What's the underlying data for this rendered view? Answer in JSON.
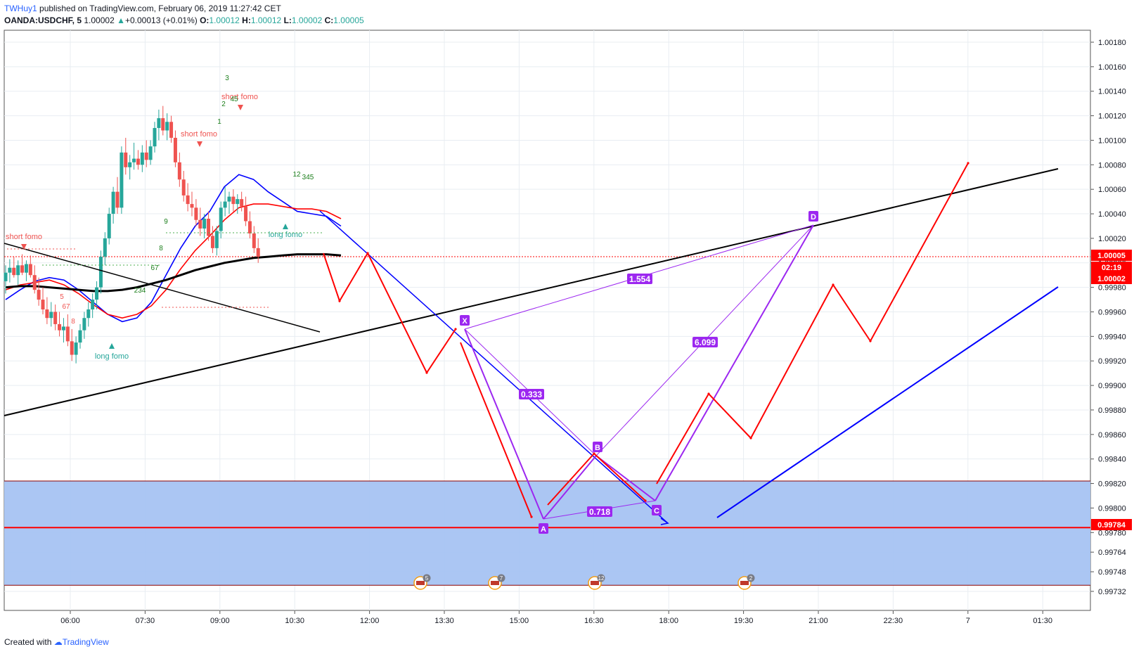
{
  "header": {
    "author": "TWHuy1",
    "published": "published on TradingView.com, February 06, 2019 11:27:42 CET",
    "symbol": "OANDA:USDCHF, 5",
    "last": "1.00002",
    "change": "+0.00013 (+0.01%)",
    "o_label": "O:",
    "o": "1.00012",
    "h_label": "H:",
    "h": "1.00012",
    "l_label": "L:",
    "l": "1.00002",
    "c_label": "C:",
    "c": "1.00005"
  },
  "footer": {
    "created": "Created with",
    "brand": "TradingView"
  },
  "colors": {
    "bull": "#26a69a",
    "bear": "#ef5350",
    "ema_fast": "#0000ff",
    "ema_slow": "#ff0000",
    "ma_long": "#000000",
    "pattern": "#9c27f0",
    "zone": "#a7c3f2",
    "projection": "#ff0000"
  },
  "chart_data": {
    "type": "candlestick",
    "symbol": "OANDA:USDCHF",
    "timeframe": "5",
    "x_ticks": [
      "06:00",
      "07:30",
      "09:00",
      "10:30",
      "12:00",
      "13:30",
      "15:00",
      "16:30",
      "18:00",
      "19:30",
      "21:00",
      "22:30",
      "7",
      "01:30"
    ],
    "y_ticks": [
      "1.00180",
      "1.00160",
      "1.00140",
      "1.00120",
      "1.00100",
      "1.00080",
      "1.00060",
      "1.00040",
      "1.00020",
      "1.00000",
      "0.99980",
      "0.99960",
      "0.99940",
      "0.99920",
      "0.99900",
      "0.99880",
      "0.99860",
      "0.99840",
      "0.99820",
      "0.99800",
      "0.99780",
      "0.99764",
      "0.99748",
      "0.99732"
    ],
    "ylim": [
      0.99725,
      1.0019
    ],
    "price_badges": [
      {
        "label": "1.00005",
        "value": 1.00005,
        "color": "#ff0000"
      },
      {
        "label": "02:19",
        "value": 0.99993,
        "color": "#ff0000"
      },
      {
        "label": "1.00002",
        "value": 0.99982,
        "color": "#ff0000"
      },
      {
        "label": "0.99784",
        "value": 0.99784,
        "color": "#ff0000"
      }
    ],
    "support_zone": {
      "top": 0.99822,
      "bottom": 0.99737,
      "line": 0.99784
    },
    "current_price_line": 1.00005,
    "candles": [
      {
        "t": "05:20",
        "o": 0.99985,
        "h": 0.99998,
        "l": 0.99975,
        "c": 0.99992
      },
      {
        "t": "05:25",
        "o": 0.99992,
        "h": 1.00003,
        "l": 0.99984,
        "c": 0.99996
      },
      {
        "t": "05:30",
        "o": 0.99996,
        "h": 1.00005,
        "l": 0.99988,
        "c": 0.9999
      },
      {
        "t": "05:35",
        "o": 0.9999,
        "h": 1.00002,
        "l": 0.99982,
        "c": 0.99998
      },
      {
        "t": "05:40",
        "o": 0.99998,
        "h": 1.00007,
        "l": 0.9999,
        "c": 0.99992
      },
      {
        "t": "05:45",
        "o": 0.99992,
        "h": 1.00002,
        "l": 0.99985,
        "c": 0.99999
      },
      {
        "t": "05:50",
        "o": 0.99999,
        "h": 1.00006,
        "l": 0.99988,
        "c": 0.9999
      },
      {
        "t": "05:55",
        "o": 0.9999,
        "h": 0.99998,
        "l": 0.99975,
        "c": 0.99978
      },
      {
        "t": "06:00",
        "o": 0.99978,
        "h": 0.99988,
        "l": 0.99965,
        "c": 0.9997
      },
      {
        "t": "06:05",
        "o": 0.9997,
        "h": 0.9998,
        "l": 0.99958,
        "c": 0.99962
      },
      {
        "t": "06:10",
        "o": 0.99962,
        "h": 0.99972,
        "l": 0.9995,
        "c": 0.99955
      },
      {
        "t": "06:15",
        "o": 0.99955,
        "h": 0.99968,
        "l": 0.99948,
        "c": 0.9996
      },
      {
        "t": "06:20",
        "o": 0.9996,
        "h": 0.99966,
        "l": 0.99945,
        "c": 0.9995
      },
      {
        "t": "06:25",
        "o": 0.9995,
        "h": 0.9996,
        "l": 0.9994,
        "c": 0.99945
      },
      {
        "t": "06:30",
        "o": 0.99945,
        "h": 0.99955,
        "l": 0.99935,
        "c": 0.99948
      },
      {
        "t": "06:35",
        "o": 0.99948,
        "h": 0.99958,
        "l": 0.99932,
        "c": 0.99936
      },
      {
        "t": "06:40",
        "o": 0.99936,
        "h": 0.99946,
        "l": 0.9992,
        "c": 0.99925
      },
      {
        "t": "06:45",
        "o": 0.99925,
        "h": 0.9994,
        "l": 0.99918,
        "c": 0.99935
      },
      {
        "t": "06:50",
        "o": 0.99935,
        "h": 0.9995,
        "l": 0.9993,
        "c": 0.99945
      },
      {
        "t": "06:55",
        "o": 0.99945,
        "h": 0.9996,
        "l": 0.99938,
        "c": 0.99955
      },
      {
        "t": "07:00",
        "o": 0.99955,
        "h": 0.99968,
        "l": 0.99948,
        "c": 0.99962
      },
      {
        "t": "07:05",
        "o": 0.99962,
        "h": 0.99975,
        "l": 0.99955,
        "c": 0.9997
      },
      {
        "t": "07:10",
        "o": 0.9997,
        "h": 0.99985,
        "l": 0.99962,
        "c": 0.9998
      },
      {
        "t": "07:15",
        "o": 0.9998,
        "h": 1.0001,
        "l": 0.99975,
        "c": 1.00005
      },
      {
        "t": "07:20",
        "o": 1.00005,
        "h": 1.00025,
        "l": 0.99998,
        "c": 1.0002
      },
      {
        "t": "07:25",
        "o": 1.0002,
        "h": 1.00045,
        "l": 1.00015,
        "c": 1.0004
      },
      {
        "t": "07:30",
        "o": 1.0004,
        "h": 1.00062,
        "l": 1.00032,
        "c": 1.00058
      },
      {
        "t": "07:35",
        "o": 1.00058,
        "h": 1.0007,
        "l": 1.0004,
        "c": 1.00045
      },
      {
        "t": "07:40",
        "o": 1.00045,
        "h": 1.00095,
        "l": 1.0004,
        "c": 1.0009
      },
      {
        "t": "07:45",
        "o": 1.0009,
        "h": 1.00102,
        "l": 1.00072,
        "c": 1.00078
      },
      {
        "t": "07:50",
        "o": 1.00078,
        "h": 1.00088,
        "l": 1.00068,
        "c": 1.00082
      },
      {
        "t": "07:55",
        "o": 1.00082,
        "h": 1.00098,
        "l": 1.00076,
        "c": 1.00085
      },
      {
        "t": "08:00",
        "o": 1.00085,
        "h": 1.00092,
        "l": 1.00076,
        "c": 1.0008
      },
      {
        "t": "08:05",
        "o": 1.0008,
        "h": 1.00096,
        "l": 1.00074,
        "c": 1.0009
      },
      {
        "t": "08:10",
        "o": 1.0009,
        "h": 1.001,
        "l": 1.00078,
        "c": 1.00084
      },
      {
        "t": "08:15",
        "o": 1.00084,
        "h": 1.001,
        "l": 1.0008,
        "c": 1.00095
      },
      {
        "t": "08:20",
        "o": 1.00095,
        "h": 1.00115,
        "l": 1.0009,
        "c": 1.0011
      },
      {
        "t": "08:25",
        "o": 1.0011,
        "h": 1.00125,
        "l": 1.001,
        "c": 1.00118
      },
      {
        "t": "08:30",
        "o": 1.00118,
        "h": 1.00128,
        "l": 1.00104,
        "c": 1.00108
      },
      {
        "t": "08:35",
        "o": 1.00108,
        "h": 1.00122,
        "l": 1.001,
        "c": 1.00115
      },
      {
        "t": "08:40",
        "o": 1.00115,
        "h": 1.0012,
        "l": 1.00098,
        "c": 1.00102
      },
      {
        "t": "08:45",
        "o": 1.00102,
        "h": 1.00108,
        "l": 1.00078,
        "c": 1.00082
      },
      {
        "t": "08:50",
        "o": 1.00082,
        "h": 1.0009,
        "l": 1.00062,
        "c": 1.00068
      },
      {
        "t": "08:55",
        "o": 1.00068,
        "h": 1.00075,
        "l": 1.0005,
        "c": 1.00055
      },
      {
        "t": "09:00",
        "o": 1.00055,
        "h": 1.00065,
        "l": 1.00042,
        "c": 1.00048
      },
      {
        "t": "09:05",
        "o": 1.00048,
        "h": 1.00058,
        "l": 1.00038,
        "c": 1.00045
      },
      {
        "t": "09:10",
        "o": 1.00045,
        "h": 1.00052,
        "l": 1.0003,
        "c": 1.00035
      },
      {
        "t": "09:15",
        "o": 1.00035,
        "h": 1.00045,
        "l": 1.00022,
        "c": 1.00028
      },
      {
        "t": "09:20",
        "o": 1.00028,
        "h": 1.0004,
        "l": 1.0002,
        "c": 1.00036
      },
      {
        "t": "09:25",
        "o": 1.00036,
        "h": 1.00042,
        "l": 1.00018,
        "c": 1.00022
      },
      {
        "t": "09:30",
        "o": 1.00022,
        "h": 1.0003,
        "l": 1.00008,
        "c": 1.00012
      },
      {
        "t": "09:35",
        "o": 1.00012,
        "h": 1.0003,
        "l": 1.00006,
        "c": 1.00026
      },
      {
        "t": "09:40",
        "o": 1.00026,
        "h": 1.0005,
        "l": 1.0002,
        "c": 1.00045
      },
      {
        "t": "09:45",
        "o": 1.00045,
        "h": 1.00062,
        "l": 1.00038,
        "c": 1.0005
      },
      {
        "t": "09:50",
        "o": 1.0005,
        "h": 1.00058,
        "l": 1.0004,
        "c": 1.00054
      },
      {
        "t": "09:55",
        "o": 1.00054,
        "h": 1.0006,
        "l": 1.00042,
        "c": 1.00048
      },
      {
        "t": "10:00",
        "o": 1.00048,
        "h": 1.00056,
        "l": 1.0004,
        "c": 1.00052
      },
      {
        "t": "10:05",
        "o": 1.00052,
        "h": 1.00058,
        "l": 1.00042,
        "c": 1.00046
      },
      {
        "t": "10:10",
        "o": 1.00046,
        "h": 1.00054,
        "l": 1.0003,
        "c": 1.00034
      },
      {
        "t": "10:15",
        "o": 1.00034,
        "h": 1.00042,
        "l": 1.0002,
        "c": 1.00024
      },
      {
        "t": "10:20",
        "o": 1.00024,
        "h": 1.0003,
        "l": 1.00008,
        "c": 1.00012
      },
      {
        "t": "10:25",
        "o": 1.00012,
        "h": 1.0002,
        "l": 1.0,
        "c": 1.00005
      }
    ],
    "series": [
      {
        "name": "",
        "type": "line",
        "color": "#0000ff",
        "values": [
          0.9997,
          0.99978,
          0.99985,
          0.99988,
          0.99986,
          0.99978,
          0.99968,
          0.99958,
          0.99952,
          0.99955,
          0.99968,
          0.9999,
          1.00012,
          1.0003,
          1.00042,
          1.00062,
          1.00072,
          1.00068,
          1.00058,
          1.0005,
          1.00042,
          1.0004,
          1.00038,
          1.0003
        ]
      },
      {
        "name": "",
        "type": "line",
        "color": "#ff0000",
        "values": [
          0.99978,
          0.99982,
          0.99984,
          0.99986,
          0.99982,
          0.99975,
          0.99966,
          0.99958,
          0.99955,
          0.99958,
          0.99965,
          0.99978,
          0.99995,
          1.0001,
          1.00022,
          1.00035,
          1.00045,
          1.00048,
          1.00048,
          1.00046,
          1.00044,
          1.00044,
          1.00042,
          1.00036
        ]
      },
      {
        "name": "",
        "type": "line",
        "color": "#000000",
        "values": [
          0.9998,
          0.99981,
          0.99981,
          0.9998,
          0.99979,
          0.99978,
          0.99977,
          0.99977,
          0.99978,
          0.9998,
          0.99983,
          0.99986,
          0.9999,
          0.99994,
          0.99997,
          1.0,
          1.00002,
          1.00004,
          1.00005,
          1.00006,
          1.00007,
          1.00007,
          1.00007,
          1.00006
        ]
      }
    ],
    "harmonic_pattern": {
      "points": [
        {
          "label": "X",
          "time": "13:45",
          "value": 0.99945
        },
        {
          "label": "A",
          "time": "15:30",
          "value": 0.99788
        },
        {
          "label": "B",
          "time": "16:35",
          "value": 0.9984
        },
        {
          "label": "C",
          "time": "17:45",
          "value": 0.99803
        },
        {
          "label": "D",
          "time": "21:00",
          "value": 1.00029
        }
      ],
      "ratios": [
        "0.333",
        "0.718",
        "6.099",
        "1.554"
      ]
    },
    "annotations": [
      "short fomo",
      "short fomo",
      "short fomo",
      "long fomo",
      "long fomo",
      "3",
      "2",
      "1",
      "45",
      "12",
      "345",
      "9",
      "8",
      "67",
      "234",
      "67",
      "5",
      "8"
    ],
    "events": [
      "5",
      "7",
      "12",
      "2"
    ]
  }
}
